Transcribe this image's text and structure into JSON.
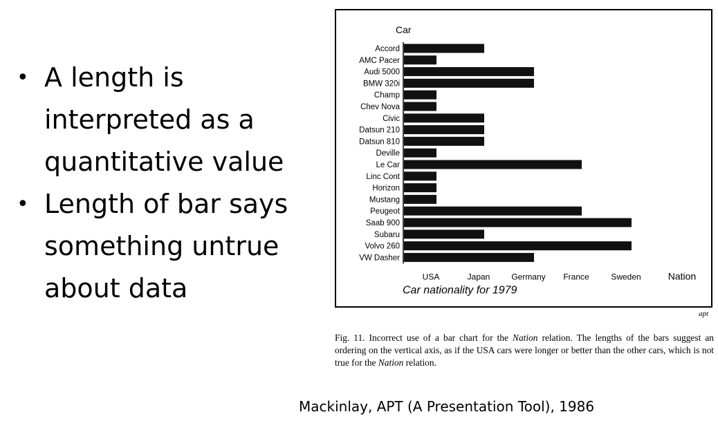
{
  "bullets": [
    {
      "text": "A length is interpreted as a quantitative value"
    },
    {
      "text": "Length of bar says something untrue about data"
    }
  ],
  "figure": {
    "apt_label": "apt",
    "caption_parts": {
      "p1": "Fig. 11.  Incorrect use of a bar chart for the ",
      "em1": "Nation",
      "p2": " relation. The lengths of the bars suggest an ordering on the vertical axis, as if the USA cars were longer or better than the other cars, which is not true for the ",
      "em2": "Nation",
      "p3": " relation."
    }
  },
  "credit": "Mackinlay, APT (A Presentation Tool), 1986",
  "chart_data": {
    "type": "bar",
    "orientation": "horizontal",
    "ylabel": "Car",
    "xlabel": "Nation",
    "subtitle": "Car nationality for 1979",
    "x_ticks": [
      "USA",
      "Japan",
      "Germany",
      "France",
      "Sweden"
    ],
    "categories": [
      "Accord",
      "AMC Pacer",
      "Audi 5000",
      "BMW 320i",
      "Champ",
      "Chev Nova",
      "Civic",
      "Datsun 210",
      "Datsun 810",
      "Deville",
      "Le Car",
      "Linc Cont",
      "Horizon",
      "Mustang",
      "Peugeot",
      "Saab 900",
      "Subaru",
      "Volvo 260",
      "VW Dasher"
    ],
    "values": [
      "Japan",
      "USA",
      "Germany",
      "Germany",
      "USA",
      "USA",
      "Japan",
      "Japan",
      "Japan",
      "USA",
      "France",
      "USA",
      "USA",
      "USA",
      "France",
      "Sweden",
      "Japan",
      "Sweden",
      "Germany"
    ],
    "bar_color": "#111111",
    "grid": false
  }
}
